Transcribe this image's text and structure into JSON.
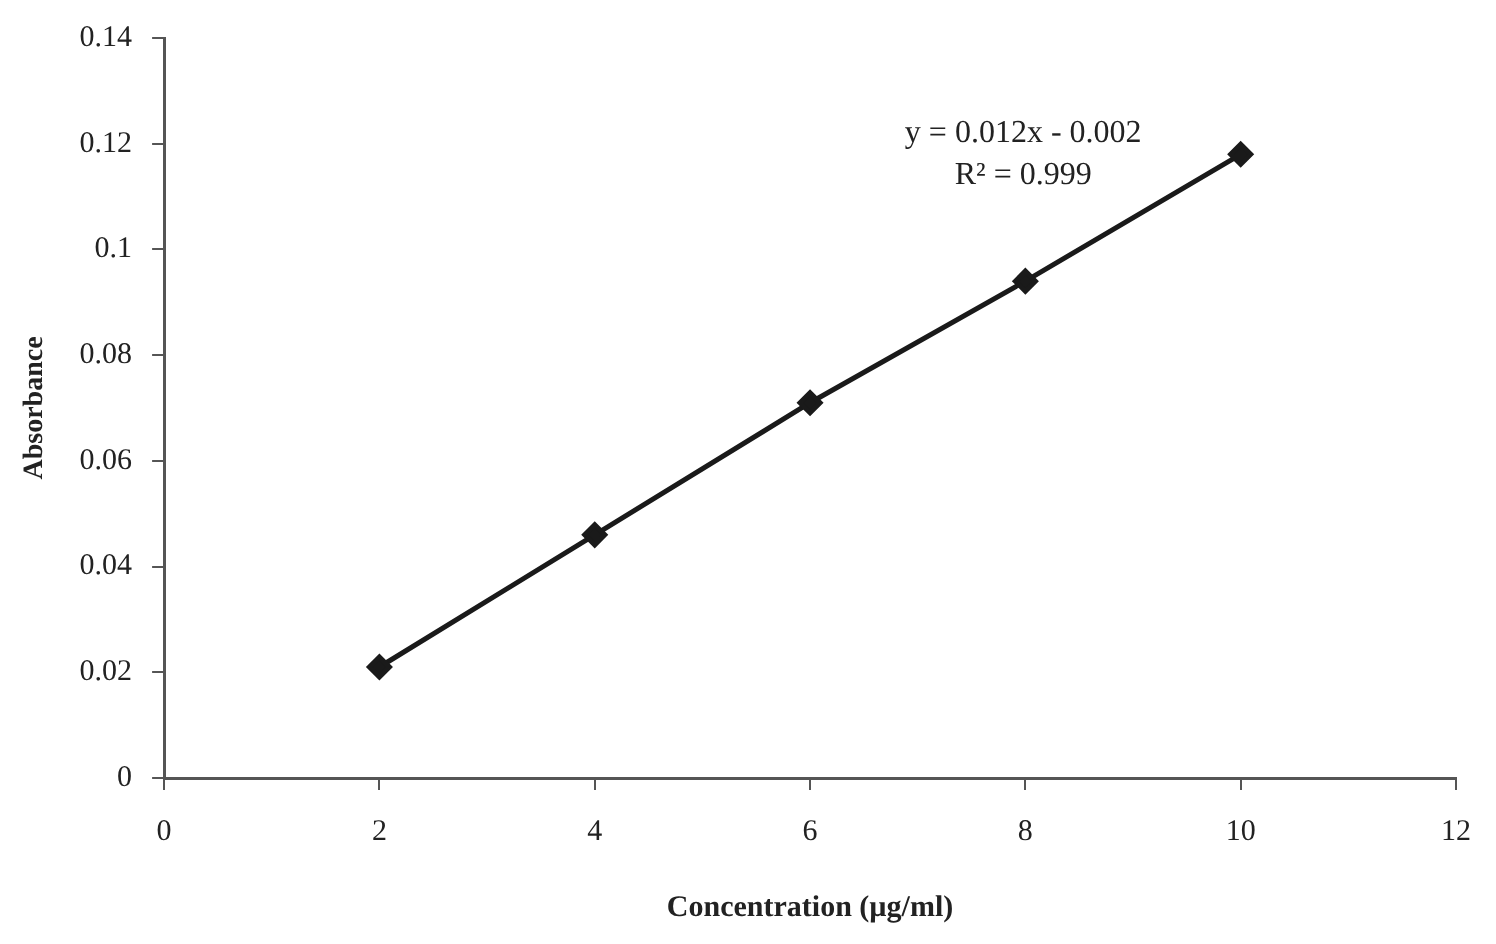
{
  "chart_data": {
    "type": "line",
    "xlabel": "Concentration (µg/ml)",
    "ylabel": "Absorbance",
    "x": [
      2,
      4,
      6,
      8,
      10
    ],
    "series": [
      {
        "color": "#1a1a1a",
        "values": [
          0.021,
          0.046,
          0.071,
          0.094,
          0.118
        ]
      }
    ],
    "xlim": [
      0,
      12
    ],
    "xticks": [
      0,
      2,
      4,
      6,
      8,
      10,
      12
    ],
    "ylim": [
      0,
      0.14
    ],
    "yticks": [
      0,
      0.02,
      0.04,
      0.06,
      0.08,
      0.1,
      0.12,
      0.14
    ],
    "annotations": [
      "y = 0.012x - 0.002",
      "R² = 0.999"
    ],
    "grid": false,
    "legend": false,
    "marker": "diamond",
    "line_style": "solid"
  }
}
